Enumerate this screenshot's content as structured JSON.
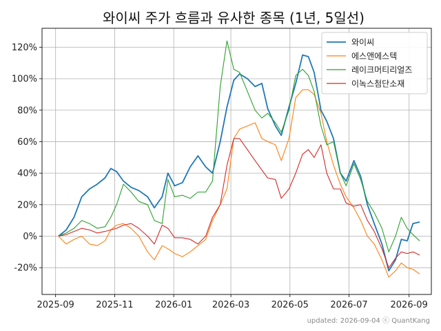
{
  "chart_data": {
    "type": "line",
    "title": "와이씨 주가 흐름과 유사한 종목 (1년, 5일선)",
    "xlabel": "",
    "ylabel": "",
    "x_ticks": [
      "2025-09",
      "2025-11",
      "2026-01",
      "2026-03",
      "2026-05",
      "2026-07",
      "2026-09"
    ],
    "y_ticks": [
      "-20%",
      "0%",
      "20%",
      "40%",
      "60%",
      "80%",
      "100%",
      "120%"
    ],
    "ylim": [
      -37,
      132
    ],
    "xlim": [
      "2025-08-18",
      "2026-09-24"
    ],
    "grid": true,
    "legend_position": "top-right",
    "footer": "updated: 2026-09-04 ⓒ QuantKang",
    "series": [
      {
        "name": "와이씨",
        "color": "#1f77b4",
        "points": [
          [
            "2025-09-04",
            0
          ],
          [
            "2025-09-12",
            4
          ],
          [
            "2025-09-20",
            12
          ],
          [
            "2025-09-28",
            25
          ],
          [
            "2025-10-06",
            30
          ],
          [
            "2025-10-14",
            33
          ],
          [
            "2025-10-22",
            37
          ],
          [
            "2025-10-28",
            43
          ],
          [
            "2025-11-03",
            41
          ],
          [
            "2025-11-10",
            35
          ],
          [
            "2025-11-18",
            31
          ],
          [
            "2025-11-26",
            29
          ],
          [
            "2025-12-05",
            25
          ],
          [
            "2025-12-12",
            18
          ],
          [
            "2025-12-20",
            25
          ],
          [
            "2025-12-26",
            40
          ],
          [
            "2026-01-02",
            32
          ],
          [
            "2026-01-10",
            34
          ],
          [
            "2026-01-18",
            44
          ],
          [
            "2026-01-26",
            51
          ],
          [
            "2026-02-03",
            44
          ],
          [
            "2026-02-10",
            40
          ],
          [
            "2026-02-18",
            60
          ],
          [
            "2026-02-25",
            82
          ],
          [
            "2026-03-04",
            99
          ],
          [
            "2026-03-10",
            103
          ],
          [
            "2026-03-18",
            100
          ],
          [
            "2026-03-26",
            95
          ],
          [
            "2026-04-02",
            97
          ],
          [
            "2026-04-08",
            81
          ],
          [
            "2026-04-16",
            70
          ],
          [
            "2026-04-22",
            64
          ],
          [
            "2026-04-30",
            82
          ],
          [
            "2026-05-07",
            97
          ],
          [
            "2026-05-14",
            115
          ],
          [
            "2026-05-20",
            114
          ],
          [
            "2026-05-26",
            104
          ],
          [
            "2026-06-02",
            80
          ],
          [
            "2026-06-08",
            73
          ],
          [
            "2026-06-15",
            62
          ],
          [
            "2026-06-22",
            40
          ],
          [
            "2026-06-28",
            35
          ],
          [
            "2026-07-06",
            48
          ],
          [
            "2026-07-13",
            38
          ],
          [
            "2026-07-20",
            20
          ],
          [
            "2026-07-27",
            8
          ],
          [
            "2026-08-04",
            -5
          ],
          [
            "2026-08-11",
            -22
          ],
          [
            "2026-08-18",
            -15
          ],
          [
            "2026-08-24",
            -2
          ],
          [
            "2026-08-30",
            -3
          ],
          [
            "2026-09-05",
            8
          ],
          [
            "2026-09-12",
            9
          ]
        ]
      },
      {
        "name": "에스앤에스텍",
        "color": "#ff7f0e",
        "points": [
          [
            "2025-09-04",
            0
          ],
          [
            "2025-09-12",
            -5
          ],
          [
            "2025-09-20",
            -2
          ],
          [
            "2025-09-28",
            0
          ],
          [
            "2025-10-06",
            -5
          ],
          [
            "2025-10-14",
            -6
          ],
          [
            "2025-10-22",
            -3
          ],
          [
            "2025-10-28",
            4
          ],
          [
            "2025-11-03",
            7
          ],
          [
            "2025-11-10",
            8
          ],
          [
            "2025-11-18",
            5
          ],
          [
            "2025-11-26",
            0
          ],
          [
            "2025-12-05",
            -10
          ],
          [
            "2025-12-12",
            -15
          ],
          [
            "2025-12-20",
            -6
          ],
          [
            "2025-12-26",
            -8
          ],
          [
            "2026-01-02",
            -11
          ],
          [
            "2026-01-10",
            -13
          ],
          [
            "2026-01-18",
            -10
          ],
          [
            "2026-01-26",
            -6
          ],
          [
            "2026-02-03",
            -2
          ],
          [
            "2026-02-10",
            10
          ],
          [
            "2026-02-18",
            20
          ],
          [
            "2026-02-25",
            30
          ],
          [
            "2026-03-04",
            62
          ],
          [
            "2026-03-10",
            68
          ],
          [
            "2026-03-18",
            70
          ],
          [
            "2026-03-26",
            72
          ],
          [
            "2026-04-02",
            62
          ],
          [
            "2026-04-08",
            60
          ],
          [
            "2026-04-16",
            58
          ],
          [
            "2026-04-22",
            48
          ],
          [
            "2026-04-30",
            62
          ],
          [
            "2026-05-07",
            88
          ],
          [
            "2026-05-14",
            93
          ],
          [
            "2026-05-20",
            93
          ],
          [
            "2026-05-26",
            90
          ],
          [
            "2026-06-02",
            78
          ],
          [
            "2026-06-08",
            60
          ],
          [
            "2026-06-15",
            45
          ],
          [
            "2026-06-22",
            33
          ],
          [
            "2026-06-28",
            25
          ],
          [
            "2026-07-06",
            18
          ],
          [
            "2026-07-13",
            10
          ],
          [
            "2026-07-20",
            0
          ],
          [
            "2026-07-27",
            -5
          ],
          [
            "2026-08-04",
            -15
          ],
          [
            "2026-08-11",
            -26
          ],
          [
            "2026-08-18",
            -22
          ],
          [
            "2026-08-24",
            -17
          ],
          [
            "2026-08-30",
            -20
          ],
          [
            "2026-09-05",
            -21
          ],
          [
            "2026-09-12",
            -24
          ]
        ]
      },
      {
        "name": "레이크머티리얼즈",
        "color": "#2ca02c",
        "points": [
          [
            "2025-09-04",
            0
          ],
          [
            "2025-09-12",
            2
          ],
          [
            "2025-09-20",
            5
          ],
          [
            "2025-09-28",
            10
          ],
          [
            "2025-10-06",
            8
          ],
          [
            "2025-10-14",
            5
          ],
          [
            "2025-10-22",
            6
          ],
          [
            "2025-10-28",
            12
          ],
          [
            "2025-11-03",
            20
          ],
          [
            "2025-11-10",
            33
          ],
          [
            "2025-11-18",
            28
          ],
          [
            "2025-11-26",
            22
          ],
          [
            "2025-12-05",
            20
          ],
          [
            "2025-12-12",
            10
          ],
          [
            "2025-12-20",
            8
          ],
          [
            "2025-12-26",
            36
          ],
          [
            "2026-01-02",
            25
          ],
          [
            "2026-01-10",
            26
          ],
          [
            "2026-01-18",
            24
          ],
          [
            "2026-01-26",
            28
          ],
          [
            "2026-02-03",
            28
          ],
          [
            "2026-02-10",
            35
          ],
          [
            "2026-02-18",
            95
          ],
          [
            "2026-02-25",
            124
          ],
          [
            "2026-03-04",
            106
          ],
          [
            "2026-03-10",
            104
          ],
          [
            "2026-03-18",
            92
          ],
          [
            "2026-03-26",
            80
          ],
          [
            "2026-04-02",
            75
          ],
          [
            "2026-04-08",
            78
          ],
          [
            "2026-04-16",
            72
          ],
          [
            "2026-04-22",
            66
          ],
          [
            "2026-04-30",
            80
          ],
          [
            "2026-05-07",
            102
          ],
          [
            "2026-05-14",
            106
          ],
          [
            "2026-05-20",
            102
          ],
          [
            "2026-05-26",
            92
          ],
          [
            "2026-06-02",
            70
          ],
          [
            "2026-06-08",
            58
          ],
          [
            "2026-06-15",
            60
          ],
          [
            "2026-06-22",
            40
          ],
          [
            "2026-06-28",
            32
          ],
          [
            "2026-07-06",
            46
          ],
          [
            "2026-07-13",
            36
          ],
          [
            "2026-07-20",
            22
          ],
          [
            "2026-07-27",
            15
          ],
          [
            "2026-08-04",
            5
          ],
          [
            "2026-08-11",
            -10
          ],
          [
            "2026-08-18",
            0
          ],
          [
            "2026-08-24",
            12
          ],
          [
            "2026-08-30",
            5
          ],
          [
            "2026-09-05",
            1
          ],
          [
            "2026-09-12",
            -3
          ]
        ]
      },
      {
        "name": "이녹스첨단소재",
        "color": "#d62728",
        "points": [
          [
            "2025-09-04",
            0
          ],
          [
            "2025-09-12",
            1
          ],
          [
            "2025-09-20",
            3
          ],
          [
            "2025-09-28",
            5
          ],
          [
            "2025-10-06",
            4
          ],
          [
            "2025-10-14",
            2
          ],
          [
            "2025-10-22",
            3
          ],
          [
            "2025-10-28",
            4
          ],
          [
            "2025-11-03",
            5
          ],
          [
            "2025-11-10",
            7
          ],
          [
            "2025-11-18",
            8
          ],
          [
            "2025-11-26",
            5
          ],
          [
            "2025-12-05",
            0
          ],
          [
            "2025-12-12",
            -5
          ],
          [
            "2025-12-20",
            7
          ],
          [
            "2025-12-26",
            5
          ],
          [
            "2026-01-02",
            -1
          ],
          [
            "2026-01-10",
            -1
          ],
          [
            "2026-01-18",
            -2
          ],
          [
            "2026-01-26",
            -5
          ],
          [
            "2026-02-03",
            0
          ],
          [
            "2026-02-10",
            12
          ],
          [
            "2026-02-18",
            20
          ],
          [
            "2026-02-25",
            45
          ],
          [
            "2026-03-04",
            62
          ],
          [
            "2026-03-10",
            62
          ],
          [
            "2026-03-18",
            55
          ],
          [
            "2026-03-26",
            48
          ],
          [
            "2026-04-02",
            42
          ],
          [
            "2026-04-08",
            37
          ],
          [
            "2026-04-16",
            36
          ],
          [
            "2026-04-22",
            24
          ],
          [
            "2026-04-30",
            30
          ],
          [
            "2026-05-07",
            40
          ],
          [
            "2026-05-14",
            52
          ],
          [
            "2026-05-20",
            55
          ],
          [
            "2026-05-26",
            50
          ],
          [
            "2026-06-02",
            58
          ],
          [
            "2026-06-08",
            40
          ],
          [
            "2026-06-15",
            30
          ],
          [
            "2026-06-22",
            30
          ],
          [
            "2026-06-28",
            21
          ],
          [
            "2026-07-06",
            19
          ],
          [
            "2026-07-13",
            20
          ],
          [
            "2026-07-20",
            10
          ],
          [
            "2026-07-27",
            3
          ],
          [
            "2026-08-04",
            -8
          ],
          [
            "2026-08-11",
            -20
          ],
          [
            "2026-08-18",
            -14
          ],
          [
            "2026-08-24",
            -10
          ],
          [
            "2026-08-30",
            -11
          ],
          [
            "2026-09-05",
            -10
          ],
          [
            "2026-09-12",
            -12
          ]
        ]
      }
    ]
  }
}
